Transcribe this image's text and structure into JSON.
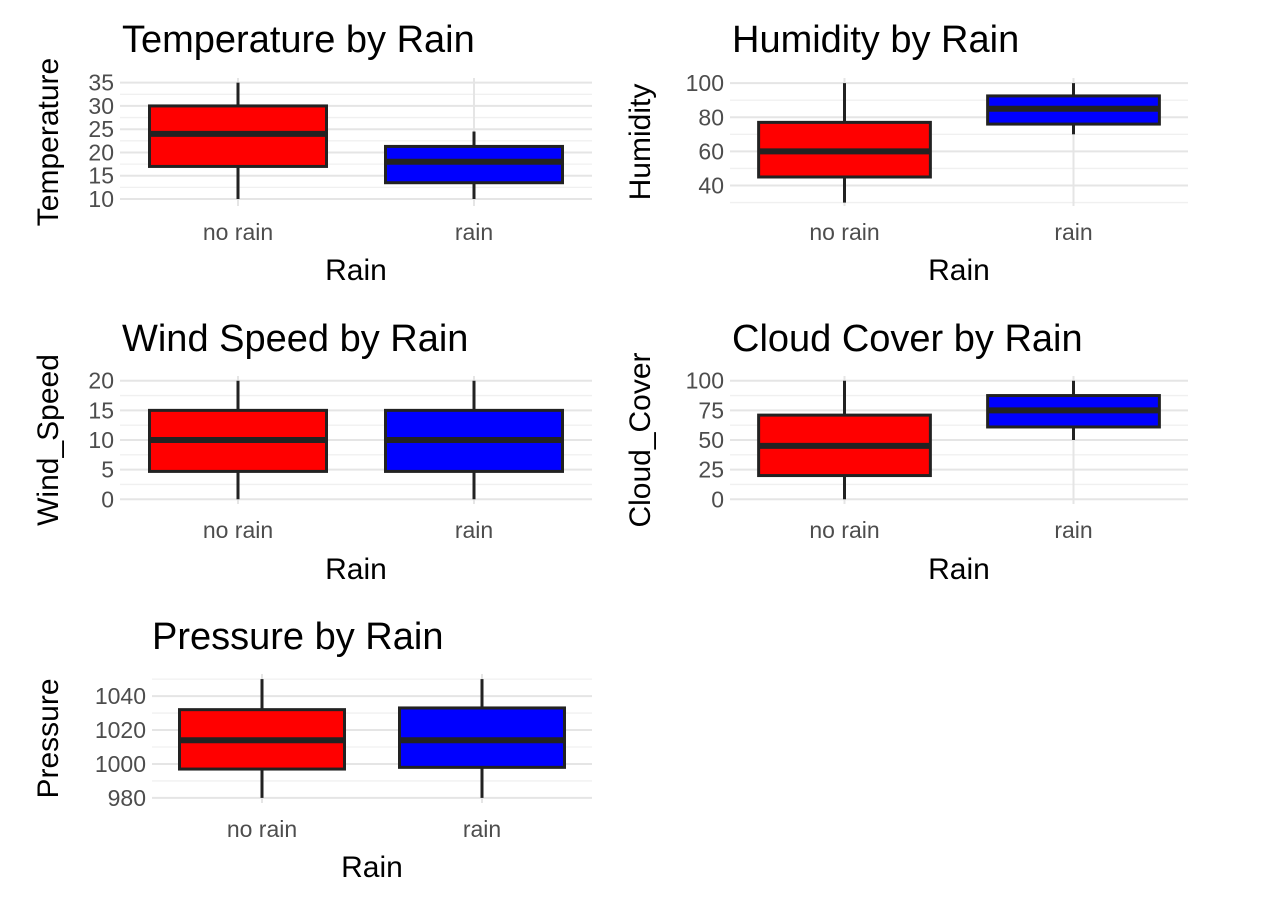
{
  "colors": {
    "no rain": "#ff0000",
    "rain": "#0000ff"
  },
  "chart_data": [
    {
      "type": "box",
      "title": "Temperature by Rain",
      "xlabel": "Rain",
      "ylabel": "Temperature",
      "categories": [
        "no rain",
        "rain"
      ],
      "ylim": [
        8.5,
        36
      ],
      "yticks": [
        "10",
        "15",
        "20",
        "25",
        "30",
        "35"
      ],
      "boxes": [
        {
          "category": "no rain",
          "min": 10,
          "q1": 17,
          "median": 24,
          "q3": 30,
          "max": 35
        },
        {
          "category": "rain",
          "min": 10,
          "q1": 13.5,
          "median": 18,
          "q3": 21.3,
          "max": 24.5
        }
      ]
    },
    {
      "type": "box",
      "title": "Humidity by Rain",
      "xlabel": "Rain",
      "ylabel": "Humidity",
      "categories": [
        "no rain",
        "rain"
      ],
      "ylim": [
        28,
        103
      ],
      "yticks": [
        "40",
        "60",
        "80",
        "100"
      ],
      "boxes": [
        {
          "category": "no rain",
          "min": 30,
          "q1": 45,
          "median": 60,
          "q3": 77,
          "max": 100
        },
        {
          "category": "rain",
          "min": 70,
          "q1": 76,
          "median": 85,
          "q3": 92.5,
          "max": 100
        }
      ]
    },
    {
      "type": "box",
      "title": "Wind Speed by Rain",
      "xlabel": "Rain",
      "ylabel": "Wind_Speed",
      "categories": [
        "no rain",
        "rain"
      ],
      "ylim": [
        -0.8,
        20.8
      ],
      "yticks": [
        "0",
        "5",
        "10",
        "15",
        "20"
      ],
      "boxes": [
        {
          "category": "no rain",
          "min": 0,
          "q1": 4.7,
          "median": 10,
          "q3": 15,
          "max": 20
        },
        {
          "category": "rain",
          "min": 0,
          "q1": 4.7,
          "median": 10,
          "q3": 15,
          "max": 20
        }
      ]
    },
    {
      "type": "box",
      "title": "Cloud Cover by Rain",
      "xlabel": "Rain",
      "ylabel": "Cloud_Cover",
      "categories": [
        "no rain",
        "rain"
      ],
      "ylim": [
        -4,
        104
      ],
      "yticks": [
        "0",
        "25",
        "50",
        "75",
        "100"
      ],
      "boxes": [
        {
          "category": "no rain",
          "min": 0,
          "q1": 20,
          "median": 45,
          "q3": 71,
          "max": 100
        },
        {
          "category": "rain",
          "min": 50,
          "q1": 61,
          "median": 75,
          "q3": 87.5,
          "max": 100
        }
      ]
    },
    {
      "type": "box",
      "title": "Pressure by Rain",
      "xlabel": "Rain",
      "ylabel": "Pressure",
      "categories": [
        "no rain",
        "rain"
      ],
      "ylim": [
        977,
        1053
      ],
      "yticks": [
        "980",
        "1000",
        "1020",
        "1040"
      ],
      "boxes": [
        {
          "category": "no rain",
          "min": 980,
          "q1": 997,
          "median": 1014,
          "q3": 1032,
          "max": 1050
        },
        {
          "category": "rain",
          "min": 980,
          "q1": 998,
          "median": 1014,
          "q3": 1033,
          "max": 1050
        }
      ]
    }
  ]
}
